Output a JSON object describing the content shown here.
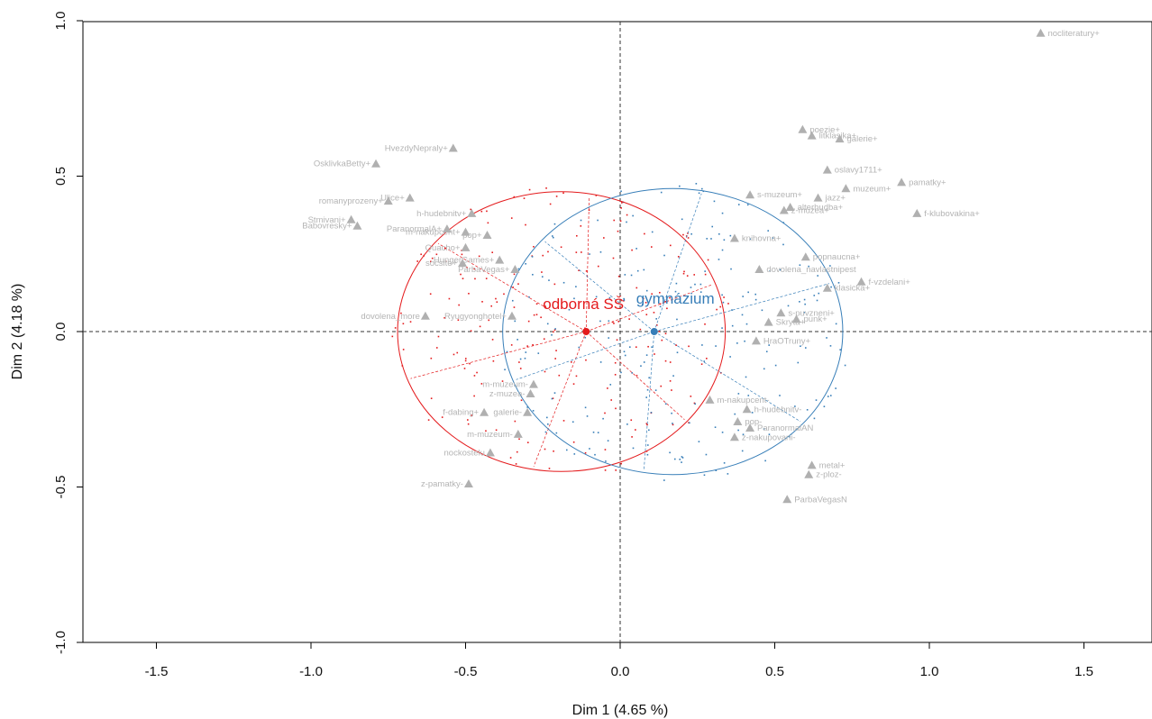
{
  "chart_data": {
    "type": "scatter",
    "xlabel": "Dim 1 (4.65 %)",
    "ylabel": "Dim 2 (4.18 %)",
    "xlim": [
      -1.7,
      1.7
    ],
    "ylim": [
      -1.0,
      1.0
    ],
    "xticks": [
      "-1.5",
      "-1.0",
      "-0.5",
      "0.0",
      "0.5",
      "1.0",
      "1.5"
    ],
    "yticks": [
      "-1.0",
      "-0.5",
      "0.0",
      "0.5",
      "1.0"
    ],
    "grid": false,
    "colors": {
      "modality": "#b0b0b0",
      "odborna": "#e41a1c",
      "gymnazium": "#377eb8",
      "axis": "#000000"
    },
    "groups": [
      {
        "name": "odborná SŠ",
        "x": -0.11,
        "y": 0.0,
        "ellipse": {
          "cx": -0.19,
          "cy": 0.0,
          "rx": 0.53,
          "ry": 0.45
        }
      },
      {
        "name": "gymnázium",
        "x": 0.11,
        "y": 0.0,
        "ellipse": {
          "cx": 0.17,
          "cy": 0.0,
          "rx": 0.55,
          "ry": 0.46
        }
      }
    ],
    "modalities": [
      {
        "label": "nocliteratury+",
        "x": 1.36,
        "y": 0.96
      },
      {
        "label": "poezie+",
        "x": 0.59,
        "y": 0.65
      },
      {
        "label": "litklasika+",
        "x": 0.62,
        "y": 0.63
      },
      {
        "label": "galerie+",
        "x": 0.71,
        "y": 0.62
      },
      {
        "label": "oslavy1711+",
        "x": 0.67,
        "y": 0.52
      },
      {
        "label": "pamatky+",
        "x": 0.91,
        "y": 0.48
      },
      {
        "label": "muzeum+",
        "x": 0.73,
        "y": 0.46
      },
      {
        "label": "jazz+",
        "x": 0.64,
        "y": 0.43
      },
      {
        "label": "f-klubovakina+",
        "x": 0.96,
        "y": 0.38
      },
      {
        "label": "alterhudba+",
        "x": 0.55,
        "y": 0.4
      },
      {
        "label": "s-muzeum+",
        "x": 0.42,
        "y": 0.44
      },
      {
        "label": "z-muzea+",
        "x": 0.53,
        "y": 0.39
      },
      {
        "label": "knihovna+",
        "x": 0.37,
        "y": 0.3
      },
      {
        "label": "popnaucna+",
        "x": 0.6,
        "y": 0.24
      },
      {
        "label": "dovolena_navlastnipest",
        "x": 0.45,
        "y": 0.2
      },
      {
        "label": "f-vzdelani+",
        "x": 0.78,
        "y": 0.16
      },
      {
        "label": "klasicka+",
        "x": 0.67,
        "y": 0.14
      },
      {
        "label": "s-puvzneni+",
        "x": 0.52,
        "y": 0.06
      },
      {
        "label": "punk+",
        "x": 0.57,
        "y": 0.04
      },
      {
        "label": "Skryta+",
        "x": 0.48,
        "y": 0.03
      },
      {
        "label": "HraOTruny+",
        "x": 0.44,
        "y": -0.03
      },
      {
        "label": "m-nakupcent-",
        "x": 0.29,
        "y": -0.22
      },
      {
        "label": "h-hudebnitv-",
        "x": 0.41,
        "y": -0.25
      },
      {
        "label": "pop-",
        "x": 0.38,
        "y": -0.29
      },
      {
        "label": "ParanormalAN",
        "x": 0.42,
        "y": -0.31
      },
      {
        "label": "z-nakupovani-",
        "x": 0.37,
        "y": -0.34
      },
      {
        "label": "metal+",
        "x": 0.62,
        "y": -0.43
      },
      {
        "label": "z-ploz-",
        "x": 0.61,
        "y": -0.46
      },
      {
        "label": "ParbaVegasN",
        "x": 0.54,
        "y": -0.54
      },
      {
        "label": "HvezdyNepraly+",
        "x": -0.54,
        "y": 0.59
      },
      {
        "label": "OsklivkaBetty+",
        "x": -0.79,
        "y": 0.54
      },
      {
        "label": "Ulice+",
        "x": -0.68,
        "y": 0.43
      },
      {
        "label": "romanyprozeny+",
        "x": -0.75,
        "y": 0.42
      },
      {
        "label": "h-hudebnitv+",
        "x": -0.48,
        "y": 0.38
      },
      {
        "label": "Stmivani+",
        "x": -0.87,
        "y": 0.36
      },
      {
        "label": "ParanormalA+",
        "x": -0.56,
        "y": 0.33
      },
      {
        "label": "Babovresky+",
        "x": -0.85,
        "y": 0.34
      },
      {
        "label": "m-nakupcent+",
        "x": -0.5,
        "y": 0.32
      },
      {
        "label": "pop+",
        "x": -0.43,
        "y": 0.31
      },
      {
        "label": "Quacho+",
        "x": -0.5,
        "y": 0.27
      },
      {
        "label": "socsite+",
        "x": -0.51,
        "y": 0.22
      },
      {
        "label": "HungerGames+",
        "x": -0.39,
        "y": 0.23
      },
      {
        "label": "ParbaVegas+",
        "x": -0.34,
        "y": 0.2
      },
      {
        "label": "dovolena_more",
        "x": -0.63,
        "y": 0.05
      },
      {
        "label": "Ryugyonghotel+",
        "x": -0.35,
        "y": 0.05
      },
      {
        "label": "m-muzeum-",
        "x": -0.28,
        "y": -0.17
      },
      {
        "label": "z-muzea-",
        "x": -0.29,
        "y": -0.2
      },
      {
        "label": "f-dabing+",
        "x": -0.44,
        "y": -0.26
      },
      {
        "label": "galerie-",
        "x": -0.3,
        "y": -0.26
      },
      {
        "label": "m-muzeum-",
        "x": -0.33,
        "y": -0.33
      },
      {
        "label": "nockostelu",
        "x": -0.42,
        "y": -0.39
      },
      {
        "label": "z-pamatky-",
        "x": -0.49,
        "y": -0.49
      }
    ]
  }
}
